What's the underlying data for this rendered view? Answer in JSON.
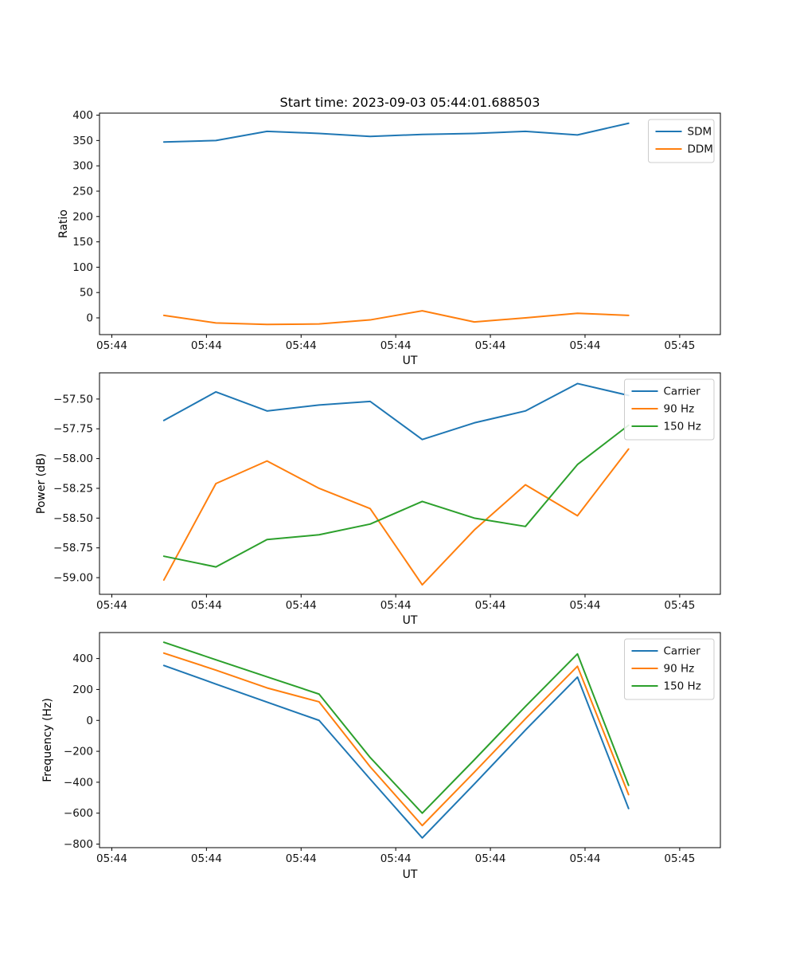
{
  "figure": {
    "background": "#ffffff"
  },
  "chart_data": [
    {
      "type": "line",
      "title": "Start time: 2023-09-03 05:44:01.688503",
      "xlabel": "UT",
      "ylabel": "Ratio",
      "x_seconds": [
        5.5,
        11.0,
        16.4,
        21.9,
        27.3,
        32.8,
        38.3,
        43.7,
        49.2,
        54.6
      ],
      "xlim_seconds": [
        -1.3,
        64.3
      ],
      "xticks_seconds": [
        0,
        10,
        20,
        30,
        40,
        50,
        60
      ],
      "xtick_labels": [
        "05:44",
        "05:44",
        "05:44",
        "05:44",
        "05:44",
        "05:44",
        "05:45"
      ],
      "ylim": [
        -33,
        404
      ],
      "yticks": [
        0,
        50,
        100,
        150,
        200,
        250,
        300,
        350,
        400
      ],
      "ytick_labels": [
        "0",
        "50",
        "100",
        "150",
        "200",
        "250",
        "300",
        "350",
        "400"
      ],
      "legend_position": "upper right",
      "grid": false,
      "series": [
        {
          "name": "SDM",
          "color": "#1f77b4",
          "values": [
            347,
            350,
            368,
            364,
            358,
            362,
            364,
            368,
            361,
            384
          ]
        },
        {
          "name": "DDM",
          "color": "#ff7f0e",
          "values": [
            5,
            -10,
            -13,
            -12,
            -4,
            14,
            -8,
            0,
            9,
            5
          ]
        }
      ]
    },
    {
      "type": "line",
      "title": "",
      "xlabel": "UT",
      "ylabel": "Power (dB)",
      "x_seconds": [
        5.5,
        11.0,
        16.4,
        21.9,
        27.3,
        32.8,
        38.3,
        43.7,
        49.2,
        54.6
      ],
      "xlim_seconds": [
        -1.3,
        64.3
      ],
      "xticks_seconds": [
        0,
        10,
        20,
        30,
        40,
        50,
        60
      ],
      "xtick_labels": [
        "05:44",
        "05:44",
        "05:44",
        "05:44",
        "05:44",
        "05:44",
        "05:45"
      ],
      "ylim": [
        -59.14,
        -57.28
      ],
      "yticks": [
        -59.0,
        -58.75,
        -58.5,
        -58.25,
        -58.0,
        -57.75,
        -57.5
      ],
      "ytick_labels": [
        "−59.00",
        "−58.75",
        "−58.50",
        "−58.25",
        "−58.00",
        "−57.75",
        "−57.50"
      ],
      "legend_position": "upper right",
      "grid": false,
      "series": [
        {
          "name": "Carrier",
          "color": "#1f77b4",
          "values": [
            -57.68,
            -57.44,
            -57.6,
            -57.55,
            -57.52,
            -57.84,
            -57.7,
            -57.6,
            -57.37,
            -57.47
          ]
        },
        {
          "name": "90 Hz",
          "color": "#ff7f0e",
          "values": [
            -59.02,
            -58.21,
            -58.02,
            -58.25,
            -58.42,
            -59.06,
            -58.6,
            -58.22,
            -58.48,
            -57.92
          ]
        },
        {
          "name": "150 Hz",
          "color": "#2ca02c",
          "values": [
            -58.82,
            -58.91,
            -58.68,
            -58.64,
            -58.55,
            -58.36,
            -58.5,
            -58.57,
            -58.05,
            -57.72
          ]
        }
      ]
    },
    {
      "type": "line",
      "title": "",
      "xlabel": "UT",
      "ylabel": "Frequency (Hz)",
      "x_seconds": [
        5.5,
        11.0,
        16.4,
        21.9,
        27.3,
        32.8,
        38.3,
        43.7,
        49.2,
        54.6
      ],
      "xlim_seconds": [
        -1.3,
        64.3
      ],
      "xticks_seconds": [
        0,
        10,
        20,
        30,
        40,
        50,
        60
      ],
      "xtick_labels": [
        "05:44",
        "05:44",
        "05:44",
        "05:44",
        "05:44",
        "05:44",
        "05:45"
      ],
      "ylim": [
        -823,
        568
      ],
      "yticks": [
        -800,
        -600,
        -400,
        -200,
        0,
        200,
        400
      ],
      "ytick_labels": [
        "−800",
        "−600",
        "−400",
        "−200",
        "0",
        "200",
        "400"
      ],
      "legend_position": "upper right",
      "grid": false,
      "series": [
        {
          "name": "Carrier",
          "color": "#1f77b4",
          "values": [
            355,
            235,
            118,
            0,
            -380,
            -760,
            -412,
            -63,
            280,
            -570
          ]
        },
        {
          "name": "90 Hz",
          "color": "#ff7f0e",
          "values": [
            435,
            325,
            210,
            120,
            -300,
            -680,
            -335,
            10,
            350,
            -480
          ]
        },
        {
          "name": "150 Hz",
          "color": "#2ca02c",
          "values": [
            505,
            392,
            282,
            170,
            -240,
            -600,
            -255,
            90,
            430,
            -420
          ]
        }
      ]
    }
  ]
}
